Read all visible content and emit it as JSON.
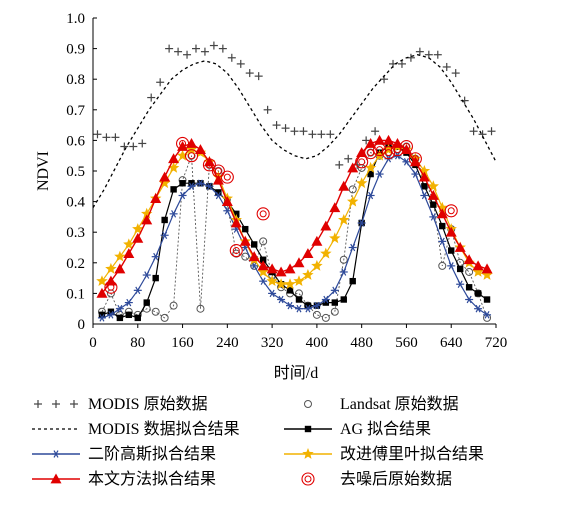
{
  "chart_data": {
    "type": "line",
    "xlabel": "时间/d",
    "ylabel": "NDVI",
    "xlim": [
      0,
      720
    ],
    "ylim": [
      0,
      1.0
    ],
    "xticks": [
      "0",
      "80",
      "160",
      "240",
      "320",
      "400",
      "480",
      "560",
      "640",
      "720"
    ],
    "yticks": [
      "0",
      "0.1",
      "0.2",
      "0.3",
      "0.4",
      "0.5",
      "0.6",
      "0.7",
      "0.8",
      "0.9",
      "1.0"
    ],
    "grid": false,
    "legend_position": "bottom",
    "series": [
      {
        "name": "MODIS 原始数据",
        "style": "plus",
        "color": "#444444",
        "x": [
          8,
          24,
          40,
          56,
          72,
          88,
          104,
          120,
          136,
          152,
          168,
          184,
          200,
          216,
          232,
          248,
          264,
          280,
          296,
          312,
          328,
          344,
          360,
          376,
          392,
          408,
          424,
          440,
          456,
          472,
          488,
          504,
          520,
          536,
          552,
          568,
          584,
          600,
          616,
          632,
          648,
          664,
          680,
          696,
          712
        ],
        "y": [
          0.62,
          0.61,
          0.61,
          0.58,
          0.58,
          0.59,
          0.74,
          0.79,
          0.9,
          0.89,
          0.88,
          0.9,
          0.89,
          0.91,
          0.9,
          0.87,
          0.85,
          0.82,
          0.81,
          0.7,
          0.65,
          0.64,
          0.63,
          0.63,
          0.62,
          0.62,
          0.62,
          0.52,
          0.54,
          0.52,
          0.6,
          0.63,
          0.8,
          0.85,
          0.85,
          0.87,
          0.89,
          0.88,
          0.88,
          0.84,
          0.82,
          0.73,
          0.63,
          0.62,
          0.63
        ]
      },
      {
        "name": "MODIS 数据拟合结果",
        "style": "dashed",
        "color": "#000000",
        "x": [
          0,
          20,
          40,
          60,
          80,
          100,
          120,
          140,
          160,
          180,
          200,
          220,
          240,
          260,
          280,
          300,
          320,
          340,
          360,
          380,
          400,
          420,
          440,
          460,
          480,
          500,
          520,
          540,
          560,
          580,
          600,
          620,
          640,
          660,
          680,
          700,
          720
        ],
        "y": [
          0.38,
          0.44,
          0.51,
          0.58,
          0.64,
          0.7,
          0.75,
          0.8,
          0.83,
          0.85,
          0.86,
          0.85,
          0.82,
          0.77,
          0.71,
          0.65,
          0.6,
          0.57,
          0.55,
          0.54,
          0.55,
          0.58,
          0.62,
          0.67,
          0.72,
          0.77,
          0.81,
          0.85,
          0.87,
          0.88,
          0.87,
          0.84,
          0.79,
          0.73,
          0.67,
          0.6,
          0.53
        ]
      },
      {
        "name": "Landsat 原始数据",
        "style": "circle",
        "color": "#555555",
        "x": [
          16,
          32,
          48,
          64,
          80,
          96,
          112,
          128,
          144,
          160,
          176,
          192,
          208,
          224,
          240,
          256,
          272,
          288,
          304,
          320,
          336,
          352,
          368,
          384,
          400,
          416,
          432,
          448,
          464,
          480,
          496,
          512,
          528,
          544,
          560,
          576,
          592,
          608,
          624,
          640,
          656,
          672,
          688,
          704
        ],
        "y": [
          0.04,
          0.1,
          0.03,
          0.04,
          0.03,
          0.05,
          0.04,
          0.02,
          0.06,
          0.47,
          0.55,
          0.05,
          0.52,
          0.5,
          0.39,
          0.23,
          0.22,
          0.19,
          0.27,
          0.16,
          0.12,
          0.1,
          0.1,
          0.06,
          0.03,
          0.02,
          0.04,
          0.21,
          0.44,
          0.51,
          0.56,
          0.55,
          0.56,
          0.57,
          0.58,
          0.54,
          0.48,
          0.4,
          0.19,
          0.31,
          0.2,
          0.17,
          0.1,
          0.02
        ]
      },
      {
        "name": "AG 拟合结果",
        "style": "square",
        "color": "#000000",
        "x": [
          16,
          32,
          48,
          64,
          80,
          96,
          112,
          128,
          144,
          160,
          176,
          192,
          208,
          224,
          240,
          256,
          272,
          288,
          304,
          320,
          336,
          352,
          368,
          384,
          400,
          416,
          432,
          448,
          464,
          480,
          496,
          512,
          528,
          544,
          560,
          576,
          592,
          608,
          624,
          640,
          656,
          672,
          688,
          704
        ],
        "y": [
          0.03,
          0.04,
          0.02,
          0.03,
          0.02,
          0.07,
          0.15,
          0.34,
          0.44,
          0.46,
          0.46,
          0.46,
          0.45,
          0.43,
          0.4,
          0.36,
          0.31,
          0.26,
          0.21,
          0.17,
          0.13,
          0.11,
          0.08,
          0.06,
          0.06,
          0.07,
          0.07,
          0.08,
          0.14,
          0.33,
          0.49,
          0.56,
          0.58,
          0.58,
          0.56,
          0.52,
          0.45,
          0.39,
          0.32,
          0.24,
          0.18,
          0.12,
          0.1,
          0.08
        ]
      },
      {
        "name": "二阶高斯拟合结果",
        "style": "asterisk",
        "color": "#2e4a9a",
        "x": [
          16,
          32,
          48,
          64,
          80,
          96,
          112,
          128,
          144,
          160,
          176,
          192,
          208,
          224,
          240,
          256,
          272,
          288,
          304,
          320,
          336,
          352,
          368,
          384,
          400,
          416,
          432,
          448,
          464,
          480,
          496,
          512,
          528,
          544,
          560,
          576,
          592,
          608,
          624,
          640,
          656,
          672,
          688,
          704
        ],
        "y": [
          0.02,
          0.03,
          0.05,
          0.07,
          0.11,
          0.16,
          0.22,
          0.29,
          0.36,
          0.42,
          0.45,
          0.46,
          0.45,
          0.42,
          0.37,
          0.31,
          0.25,
          0.19,
          0.14,
          0.1,
          0.08,
          0.06,
          0.05,
          0.05,
          0.06,
          0.08,
          0.11,
          0.17,
          0.25,
          0.33,
          0.42,
          0.49,
          0.54,
          0.55,
          0.53,
          0.49,
          0.42,
          0.35,
          0.27,
          0.19,
          0.13,
          0.08,
          0.05,
          0.03
        ]
      },
      {
        "name": "改进傅里叶拟合结果",
        "style": "star",
        "color": "#f2b200",
        "x": [
          16,
          32,
          48,
          64,
          80,
          96,
          112,
          128,
          144,
          160,
          176,
          192,
          208,
          224,
          240,
          256,
          272,
          288,
          304,
          320,
          336,
          352,
          368,
          384,
          400,
          416,
          432,
          448,
          464,
          480,
          496,
          512,
          528,
          544,
          560,
          576,
          592,
          608,
          624,
          640,
          656,
          672,
          688,
          704
        ],
        "y": [
          0.14,
          0.18,
          0.22,
          0.26,
          0.31,
          0.36,
          0.41,
          0.46,
          0.51,
          0.55,
          0.57,
          0.56,
          0.53,
          0.48,
          0.41,
          0.34,
          0.27,
          0.21,
          0.17,
          0.14,
          0.13,
          0.13,
          0.14,
          0.16,
          0.19,
          0.23,
          0.28,
          0.34,
          0.4,
          0.46,
          0.51,
          0.55,
          0.57,
          0.58,
          0.57,
          0.54,
          0.5,
          0.45,
          0.38,
          0.31,
          0.25,
          0.2,
          0.17,
          0.16
        ]
      },
      {
        "name": "本文方法拟合结果",
        "style": "triangle",
        "color": "#e00000",
        "x": [
          16,
          32,
          48,
          64,
          80,
          96,
          112,
          128,
          144,
          160,
          176,
          192,
          208,
          224,
          240,
          256,
          272,
          288,
          304,
          320,
          336,
          352,
          368,
          384,
          400,
          416,
          432,
          448,
          464,
          480,
          496,
          512,
          528,
          544,
          560,
          576,
          592,
          608,
          624,
          640,
          656,
          672,
          688,
          704
        ],
        "y": [
          0.1,
          0.14,
          0.18,
          0.23,
          0.28,
          0.34,
          0.41,
          0.48,
          0.54,
          0.58,
          0.59,
          0.57,
          0.53,
          0.47,
          0.4,
          0.33,
          0.27,
          0.22,
          0.19,
          0.18,
          0.17,
          0.18,
          0.2,
          0.23,
          0.27,
          0.32,
          0.38,
          0.45,
          0.51,
          0.56,
          0.59,
          0.6,
          0.6,
          0.59,
          0.57,
          0.53,
          0.48,
          0.42,
          0.36,
          0.3,
          0.25,
          0.21,
          0.19,
          0.18
        ]
      },
      {
        "name": "去噪后原始数据",
        "style": "double-circle",
        "color": "#e00000",
        "x": [
          32,
          160,
          176,
          208,
          224,
          240,
          256,
          304,
          480,
          496,
          512,
          528,
          544,
          560,
          576,
          640
        ],
        "y": [
          0.12,
          0.59,
          0.55,
          0.52,
          0.5,
          0.48,
          0.24,
          0.36,
          0.53,
          0.56,
          0.57,
          0.56,
          0.57,
          0.58,
          0.54,
          0.37
        ]
      }
    ]
  }
}
